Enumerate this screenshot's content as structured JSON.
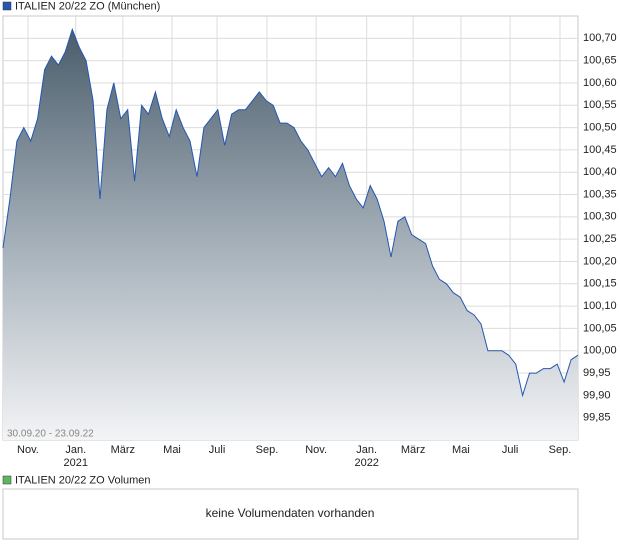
{
  "chart_data": {
    "type": "area",
    "title": "ITALIEN 20/22 ZO (München)",
    "date_range": "30.09.20 - 23.09.22",
    "volume_legend": "ITALIEN 20/22 ZO Volumen",
    "volume_message": "keine Volumendaten vorhanden",
    "color": "#2457b0",
    "volume_color": "#5cb85c",
    "grid": true,
    "xlim": [
      0,
      83
    ],
    "xticks": [
      {
        "value": 3.6,
        "label": "Nov."
      },
      {
        "value": 10.5,
        "label": "Jan."
      },
      {
        "value": 17.3,
        "label": "März"
      },
      {
        "value": 24.4,
        "label": "Mai"
      },
      {
        "value": 30.9,
        "label": "Juli"
      },
      {
        "value": 38.1,
        "label": "Sep."
      },
      {
        "value": 45.2,
        "label": "Nov."
      },
      {
        "value": 52.5,
        "label": "Jan."
      },
      {
        "value": 59.2,
        "label": "März"
      },
      {
        "value": 66.1,
        "label": "Mai"
      },
      {
        "value": 73.2,
        "label": "Juli"
      },
      {
        "value": 80.4,
        "label": "Sep."
      }
    ],
    "year_labels": [
      {
        "value": 10.5,
        "label": "2021"
      },
      {
        "value": 52.5,
        "label": "2022"
      }
    ],
    "ylim": [
      99.8,
      100.75
    ],
    "yticks": [
      {
        "value": 99.85,
        "label": "99,85"
      },
      {
        "value": 99.9,
        "label": "99,90"
      },
      {
        "value": 99.95,
        "label": "99,95"
      },
      {
        "value": 100.0,
        "label": "100,00"
      },
      {
        "value": 100.05,
        "label": "100,05"
      },
      {
        "value": 100.1,
        "label": "100,10"
      },
      {
        "value": 100.15,
        "label": "100,15"
      },
      {
        "value": 100.2,
        "label": "100,20"
      },
      {
        "value": 100.25,
        "label": "100,25"
      },
      {
        "value": 100.3,
        "label": "100,30"
      },
      {
        "value": 100.35,
        "label": "100,35"
      },
      {
        "value": 100.4,
        "label": "100,40"
      },
      {
        "value": 100.45,
        "label": "100,45"
      },
      {
        "value": 100.5,
        "label": "100,50"
      },
      {
        "value": 100.55,
        "label": "100,55"
      },
      {
        "value": 100.6,
        "label": "100,60"
      },
      {
        "value": 100.65,
        "label": "100,65"
      },
      {
        "value": 100.7,
        "label": "100,70"
      }
    ],
    "values": [
      100.23,
      100.34,
      100.47,
      100.5,
      100.47,
      100.52,
      100.63,
      100.66,
      100.64,
      100.67,
      100.72,
      100.68,
      100.65,
      100.56,
      100.34,
      100.54,
      100.6,
      100.52,
      100.54,
      100.38,
      100.55,
      100.53,
      100.58,
      100.52,
      100.48,
      100.54,
      100.5,
      100.47,
      100.39,
      100.5,
      100.52,
      100.54,
      100.46,
      100.53,
      100.54,
      100.54,
      100.56,
      100.58,
      100.56,
      100.55,
      100.51,
      100.51,
      100.5,
      100.47,
      100.45,
      100.42,
      100.39,
      100.41,
      100.39,
      100.42,
      100.37,
      100.34,
      100.32,
      100.37,
      100.34,
      100.29,
      100.21,
      100.29,
      100.3,
      100.26,
      100.25,
      100.24,
      100.19,
      100.16,
      100.15,
      100.13,
      100.12,
      100.09,
      100.08,
      100.06,
      100.0,
      100.0,
      100.0,
      99.99,
      99.97,
      99.9,
      99.95,
      99.95,
      99.96,
      99.96,
      99.97,
      99.93,
      99.98,
      99.99
    ]
  }
}
